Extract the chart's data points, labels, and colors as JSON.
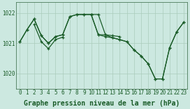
{
  "bg_color": "#cce8e0",
  "grid_color": "#aaccbb",
  "line_color": "#1a5c28",
  "xlabel": "Graphe pression niveau de la mer (hPa)",
  "xlabel_fontsize": 7,
  "tick_fontsize": 5.5,
  "yticks": [
    1020,
    1021,
    1022
  ],
  "ylim": [
    1019.55,
    1022.35
  ],
  "xlim": [
    -0.5,
    23.5
  ],
  "series_x": [
    [
      0,
      1,
      2,
      3,
      4,
      5,
      6,
      7,
      8,
      9,
      10,
      11,
      12,
      13,
      14
    ],
    [
      0,
      1,
      2,
      3,
      4,
      5,
      6,
      7,
      8,
      9,
      10,
      11,
      12,
      13,
      14,
      15,
      16,
      17,
      18,
      19,
      20,
      21,
      22,
      23
    ],
    [
      2,
      3,
      4,
      5,
      6
    ],
    [
      10,
      11,
      12,
      13,
      14,
      15,
      16,
      17,
      18,
      19,
      20,
      21,
      22,
      23
    ]
  ],
  "series_y": [
    [
      1021.05,
      1021.45,
      1021.8,
      1021.25,
      1021.0,
      1021.22,
      1021.28,
      1021.88,
      1021.95,
      1021.95,
      1021.95,
      1021.28,
      1021.28,
      1021.25,
      1021.22
    ],
    [
      1021.05,
      1021.45,
      1021.8,
      1021.25,
      1021.0,
      1021.22,
      1021.28,
      1021.88,
      1021.95,
      1021.95,
      1021.95,
      1021.28,
      1021.22,
      1021.18,
      1021.12,
      1021.05,
      1020.78,
      1020.58,
      1020.32,
      1019.82,
      1019.82,
      1020.85,
      1021.38,
      1021.7
    ],
    [
      1021.62,
      1021.05,
      1020.82,
      1021.12,
      1021.2
    ],
    [
      1021.95,
      1021.95,
      1021.28,
      1021.18,
      1021.12,
      1021.05,
      1020.78,
      1020.58,
      1020.32,
      1019.82,
      1019.82,
      1020.85,
      1021.38,
      1021.7
    ]
  ]
}
